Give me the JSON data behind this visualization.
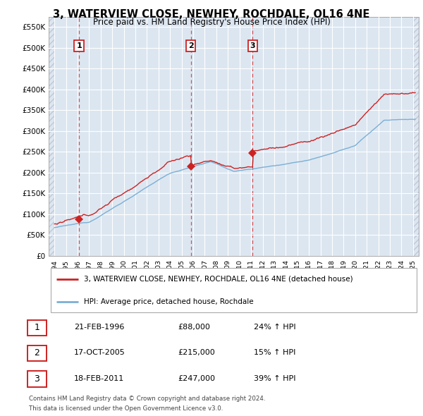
{
  "title": "3, WATERVIEW CLOSE, NEWHEY, ROCHDALE, OL16 4NE",
  "subtitle": "Price paid vs. HM Land Registry's House Price Index (HPI)",
  "hpi_color": "#7bafd4",
  "price_color": "#cc2222",
  "sale_marker_color": "#cc2222",
  "plot_bg_color": "#dce6f1",
  "grid_color": "#ffffff",
  "ylim": [
    0,
    575000
  ],
  "yticks": [
    0,
    50000,
    100000,
    150000,
    200000,
    250000,
    300000,
    350000,
    400000,
    450000,
    500000,
    550000
  ],
  "ytick_labels": [
    "£0",
    "£50K",
    "£100K",
    "£150K",
    "£200K",
    "£250K",
    "£300K",
    "£350K",
    "£400K",
    "£450K",
    "£500K",
    "£550K"
  ],
  "xlim": [
    1993.5,
    2025.5
  ],
  "xticks": [
    1994,
    1995,
    1996,
    1997,
    1998,
    1999,
    2000,
    2001,
    2002,
    2003,
    2004,
    2005,
    2006,
    2007,
    2008,
    2009,
    2010,
    2011,
    2012,
    2013,
    2014,
    2015,
    2016,
    2017,
    2018,
    2019,
    2020,
    2021,
    2022,
    2023,
    2024,
    2025
  ],
  "sales": [
    {
      "date_num": 1996.13,
      "price": 88000,
      "label": "1"
    },
    {
      "date_num": 2005.8,
      "price": 215000,
      "label": "2"
    },
    {
      "date_num": 2011.13,
      "price": 247000,
      "label": "3"
    }
  ],
  "legend_entries": [
    "3, WATERVIEW CLOSE, NEWHEY, ROCHDALE, OL16 4NE (detached house)",
    "HPI: Average price, detached house, Rochdale"
  ],
  "table_rows": [
    {
      "num": "1",
      "date": "21-FEB-1996",
      "price": "£88,000",
      "hpi": "24% ↑ HPI"
    },
    {
      "num": "2",
      "date": "17-OCT-2005",
      "price": "£215,000",
      "hpi": "15% ↑ HPI"
    },
    {
      "num": "3",
      "date": "18-FEB-2011",
      "price": "£247,000",
      "hpi": "39% ↑ HPI"
    }
  ],
  "footnote1": "Contains HM Land Registry data © Crown copyright and database right 2024.",
  "footnote2": "This data is licensed under the Open Government Licence v3.0."
}
